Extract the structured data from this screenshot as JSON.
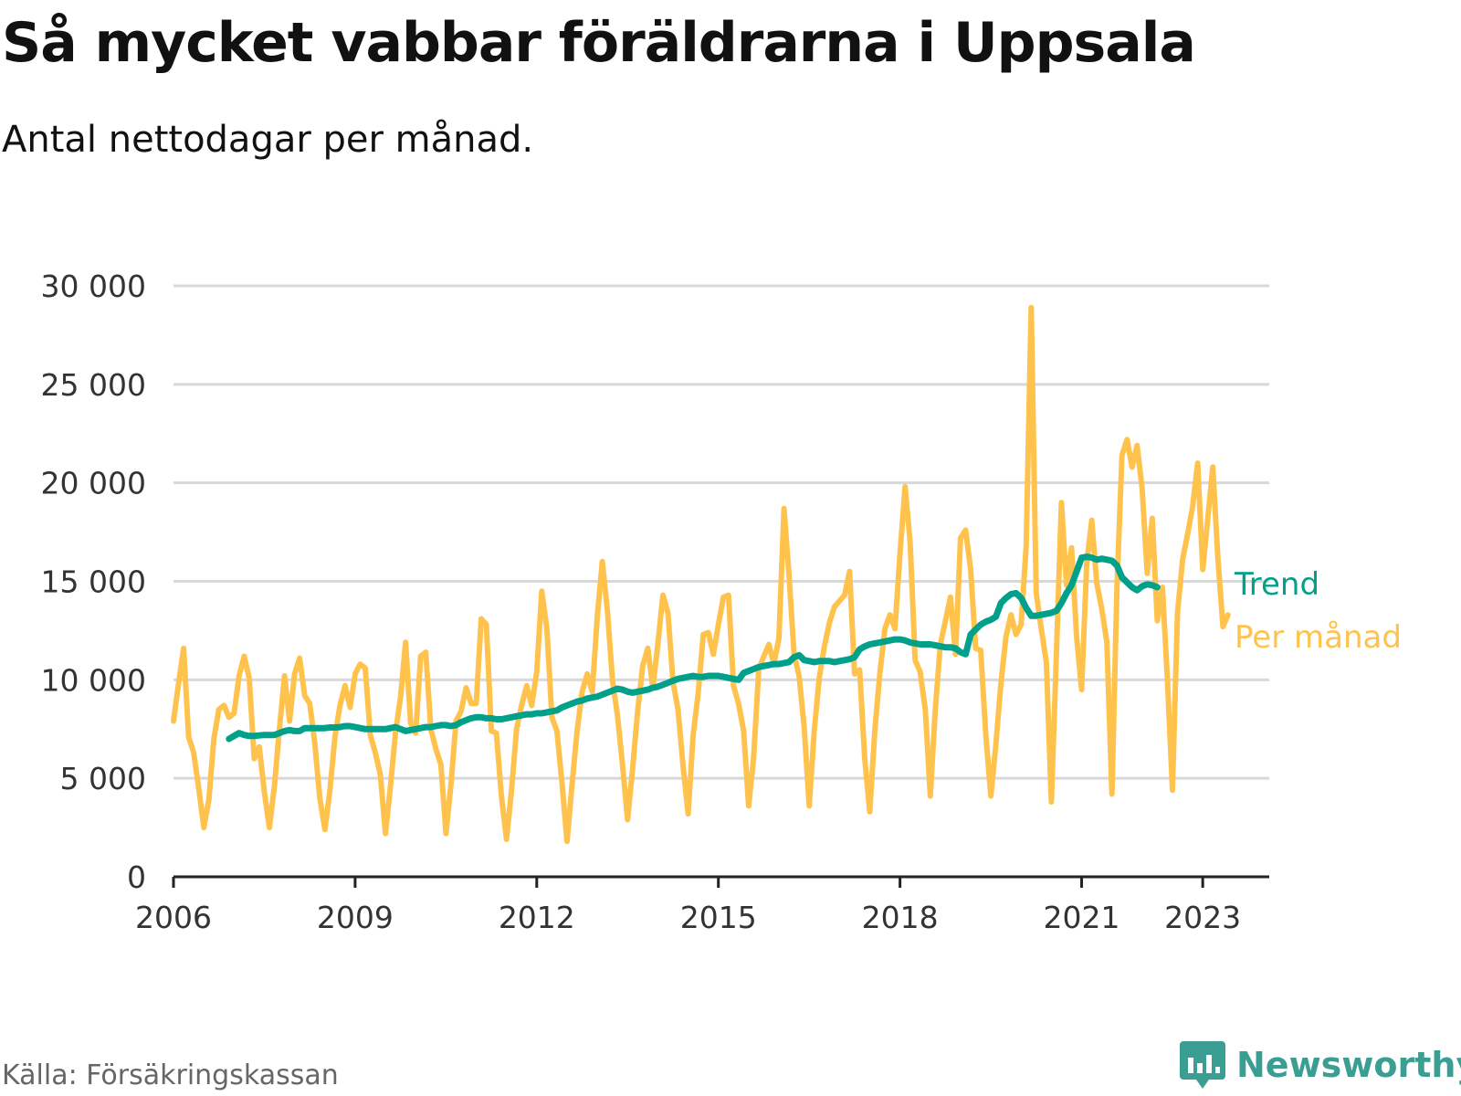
{
  "header": {
    "title": "Så mycket vabbar föräldrarna i Uppsala",
    "subtitle": "Antal nettodagar per månad."
  },
  "footer": {
    "source": "Källa: Försäkringskassan",
    "brand": "Newsworthy"
  },
  "colors": {
    "monthly": "#ffc34d",
    "trend": "#00a08a",
    "grid": "#d8d8d8",
    "axis": "#222222",
    "tick_text": "#333333",
    "brand": "#3a9e93"
  },
  "chart_data": {
    "type": "line",
    "title": "Så mycket vabbar föräldrarna i Uppsala",
    "subtitle": "Antal nettodagar per månad.",
    "xlabel": "",
    "ylabel": "",
    "xlim": [
      2006.0,
      2023.42
    ],
    "ylim": [
      0,
      30000
    ],
    "grid": true,
    "y_ticks": [
      {
        "value": 0,
        "label": "0"
      },
      {
        "value": 5000,
        "label": "5 000"
      },
      {
        "value": 10000,
        "label": "10 000"
      },
      {
        "value": 15000,
        "label": "15 000"
      },
      {
        "value": 20000,
        "label": "20 000"
      },
      {
        "value": 25000,
        "label": "25 000"
      },
      {
        "value": 30000,
        "label": "30 000"
      }
    ],
    "x_ticks": [
      {
        "value": 2006,
        "label": "2006"
      },
      {
        "value": 2009,
        "label": "2009"
      },
      {
        "value": 2012,
        "label": "2012"
      },
      {
        "value": 2015,
        "label": "2015"
      },
      {
        "value": 2018,
        "label": "2018"
      },
      {
        "value": 2021,
        "label": "2021"
      },
      {
        "value": 2023,
        "label": "2023"
      }
    ],
    "series": [
      {
        "name": "Per månad",
        "start": 2006.0,
        "step_months": 1,
        "values": [
          7900,
          9800,
          11600,
          7100,
          6300,
          4500,
          2500,
          3900,
          7000,
          8500,
          8700,
          8100,
          8300,
          10200,
          11200,
          10100,
          6000,
          6600,
          4300,
          2500,
          4600,
          7500,
          10200,
          7900,
          10300,
          11100,
          9200,
          8800,
          6800,
          4000,
          2400,
          4400,
          7100,
          8700,
          9700,
          8600,
          10300,
          10800,
          10600,
          7200,
          6300,
          5200,
          2200,
          4600,
          7300,
          9100,
          11900,
          7800,
          7300,
          11200,
          11400,
          7500,
          6500,
          5700,
          2200,
          4700,
          7900,
          8400,
          9600,
          8800,
          8800,
          13100,
          12800,
          7400,
          7300,
          4100,
          1900,
          4400,
          7500,
          8700,
          9700,
          8700,
          10400,
          14500,
          12600,
          8100,
          7400,
          4800,
          1800,
          4700,
          7400,
          9400,
          10300,
          9400,
          13200,
          16000,
          13500,
          10000,
          8200,
          5700,
          2900,
          5500,
          8400,
          10700,
          11600,
          9600,
          11800,
          14300,
          13400,
          9900,
          8500,
          5600,
          3200,
          7200,
          9300,
          12300,
          12400,
          11300,
          12800,
          14200,
          14300,
          9700,
          8800,
          7400,
          3600,
          6100,
          10500,
          11200,
          11800,
          10800,
          12100,
          18700,
          15300,
          11300,
          10200,
          7600,
          3600,
          7400,
          10100,
          11700,
          12900,
          13700,
          14000,
          14300,
          15500,
          10300,
          10500,
          6000,
          3300,
          7400,
          10300,
          12600,
          13300,
          12600,
          16400,
          19800,
          17000,
          11000,
          10400,
          8500,
          4100,
          8500,
          11800,
          13000,
          14200,
          11300,
          17200,
          17600,
          15600,
          11600,
          11500,
          7200,
          4100,
          6700,
          9800,
          12200,
          13300,
          12300,
          12800,
          16800,
          28900,
          14400,
          12600,
          10900,
          3800,
          11300,
          19000,
          14800,
          16700,
          12200,
          9500,
          15900,
          18100,
          14900,
          13600,
          11900,
          4200,
          14700,
          21400,
          22200,
          20800,
          21900,
          19700,
          15400,
          18200,
          13000,
          14700,
          10000,
          4400,
          13400,
          16100,
          17400,
          18800,
          21000,
          15600,
          18200,
          20800,
          16200,
          12700,
          13300
        ]
      },
      {
        "name": "Trend",
        "start": 2006.917,
        "step_months": 1,
        "values": [
          7000,
          7150,
          7300,
          7200,
          7150,
          7150,
          7180,
          7200,
          7200,
          7200,
          7300,
          7400,
          7450,
          7400,
          7400,
          7550,
          7550,
          7550,
          7550,
          7550,
          7580,
          7580,
          7600,
          7650,
          7650,
          7600,
          7550,
          7500,
          7500,
          7500,
          7500,
          7500,
          7550,
          7600,
          7500,
          7400,
          7450,
          7500,
          7550,
          7600,
          7600,
          7650,
          7700,
          7700,
          7650,
          7700,
          7850,
          7950,
          8050,
          8100,
          8100,
          8050,
          8050,
          8000,
          8000,
          8050,
          8100,
          8150,
          8200,
          8250,
          8250,
          8300,
          8300,
          8350,
          8400,
          8450,
          8600,
          8700,
          8800,
          8900,
          8950,
          9050,
          9100,
          9150,
          9250,
          9350,
          9450,
          9550,
          9500,
          9400,
          9350,
          9400,
          9450,
          9500,
          9600,
          9650,
          9750,
          9850,
          9950,
          10050,
          10100,
          10150,
          10200,
          10150,
          10150,
          10200,
          10200,
          10200,
          10150,
          10100,
          10050,
          10000,
          10350,
          10450,
          10550,
          10650,
          10700,
          10750,
          10800,
          10800,
          10850,
          10900,
          11150,
          11250,
          11000,
          10950,
          10900,
          10950,
          10950,
          10950,
          10900,
          10950,
          11000,
          11050,
          11150,
          11550,
          11700,
          11800,
          11850,
          11900,
          11950,
          12000,
          12050,
          12050,
          12000,
          11900,
          11850,
          11800,
          11800,
          11800,
          11750,
          11700,
          11650,
          11650,
          11600,
          11400,
          11300,
          12300,
          12550,
          12800,
          12950,
          13050,
          13200,
          13900,
          14150,
          14350,
          14400,
          14150,
          13650,
          13250,
          13250,
          13300,
          13350,
          13400,
          13500,
          13900,
          14400,
          14800,
          15500,
          16200,
          16250,
          16200,
          16100,
          16150,
          16100,
          16050,
          15800,
          15200,
          14950,
          14700,
          14550,
          14750,
          14850,
          14800,
          14700
        ]
      }
    ],
    "legend": [
      {
        "label": "Trend",
        "series": "Trend",
        "placement": "right end of line"
      },
      {
        "label": "Per månad",
        "series": "Per månad",
        "placement": "right end of line"
      }
    ]
  }
}
